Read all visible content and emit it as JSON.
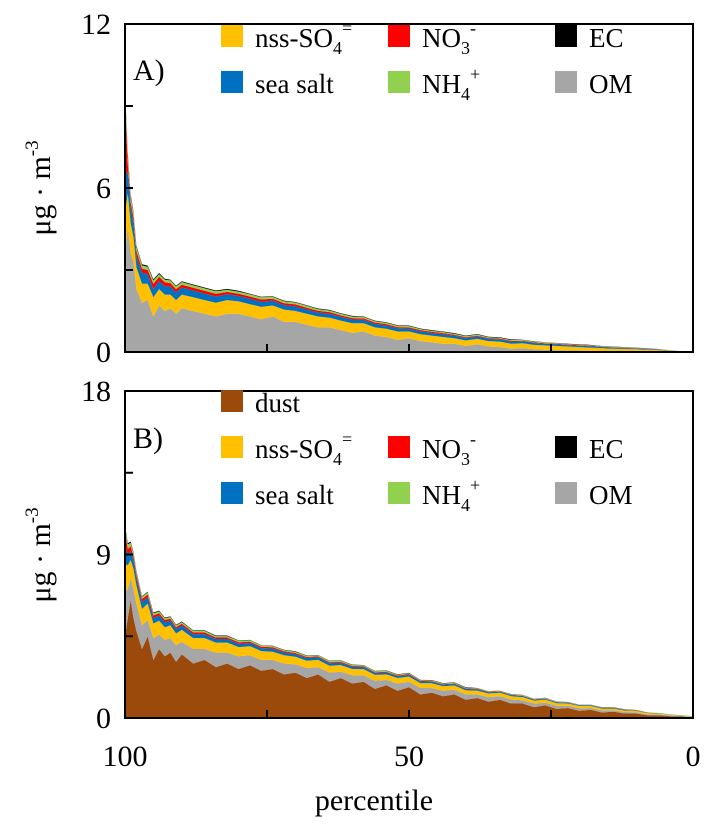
{
  "chart_data": [
    {
      "type": "area",
      "panel_label": "A)",
      "ylabel_base": "μg · m",
      "ylabel_exp": "-3",
      "ylim": [
        0,
        12
      ],
      "yticks": [
        "0",
        "6",
        "12"
      ],
      "xlim": [
        100,
        0
      ],
      "x": [
        100,
        99.5,
        99,
        98.5,
        98,
        97,
        96,
        95,
        94,
        93,
        92,
        91,
        90,
        88,
        86,
        84,
        82,
        80,
        78,
        76,
        74,
        72,
        70,
        68,
        66,
        64,
        62,
        60,
        58,
        56,
        54,
        52,
        50,
        48,
        46,
        44,
        42,
        40,
        38,
        36,
        34,
        32,
        30,
        28,
        26,
        24,
        22,
        20,
        18,
        16,
        14,
        12,
        10,
        8,
        6,
        4,
        2,
        0
      ],
      "series": [
        {
          "name": "OM",
          "color": "#a6a6a6",
          "values": [
            3.5,
            4.6,
            3.6,
            3.3,
            2.3,
            1.8,
            1.9,
            1.3,
            1.7,
            1.5,
            1.6,
            1.4,
            1.6,
            1.5,
            1.4,
            1.3,
            1.4,
            1.4,
            1.3,
            1.2,
            1.3,
            1.1,
            1.1,
            1.0,
            0.9,
            0.9,
            0.8,
            0.7,
            0.75,
            0.6,
            0.55,
            0.45,
            0.5,
            0.4,
            0.35,
            0.3,
            0.3,
            0.22,
            0.28,
            0.2,
            0.18,
            0.12,
            0.14,
            0.1,
            0.08,
            0.07,
            0.06,
            0.05,
            0.04,
            0.03,
            0.02,
            0.02,
            0.02,
            0.01,
            0.01,
            0.01,
            0.0,
            0.0
          ]
        },
        {
          "name": "nss-SO4=",
          "color": "#ffc000",
          "values": [
            1.6,
            1.2,
            1.1,
            0.9,
            0.8,
            0.7,
            0.6,
            0.7,
            0.6,
            0.6,
            0.5,
            0.5,
            0.5,
            0.5,
            0.5,
            0.5,
            0.5,
            0.45,
            0.45,
            0.45,
            0.4,
            0.45,
            0.4,
            0.4,
            0.4,
            0.35,
            0.35,
            0.35,
            0.3,
            0.3,
            0.3,
            0.3,
            0.25,
            0.25,
            0.25,
            0.25,
            0.2,
            0.2,
            0.2,
            0.2,
            0.2,
            0.18,
            0.18,
            0.16,
            0.16,
            0.15,
            0.14,
            0.13,
            0.12,
            0.11,
            0.1,
            0.09,
            0.08,
            0.07,
            0.06,
            0.04,
            0.02,
            0.0
          ]
        },
        {
          "name": "sea salt",
          "color": "#0070c0",
          "values": [
            1.3,
            0.8,
            0.6,
            0.5,
            0.4,
            0.4,
            0.35,
            0.3,
            0.3,
            0.3,
            0.3,
            0.28,
            0.26,
            0.25,
            0.24,
            0.23,
            0.22,
            0.2,
            0.2,
            0.19,
            0.18,
            0.17,
            0.17,
            0.16,
            0.15,
            0.15,
            0.14,
            0.14,
            0.13,
            0.13,
            0.12,
            0.12,
            0.11,
            0.11,
            0.1,
            0.1,
            0.1,
            0.09,
            0.09,
            0.08,
            0.08,
            0.08,
            0.07,
            0.07,
            0.06,
            0.06,
            0.05,
            0.05,
            0.05,
            0.04,
            0.04,
            0.03,
            0.03,
            0.02,
            0.02,
            0.01,
            0.01,
            0.0
          ]
        },
        {
          "name": "NO3-",
          "color": "#ff0000",
          "values": [
            2.9,
            0.3,
            0.2,
            0.2,
            0.2,
            0.15,
            0.15,
            0.2,
            0.15,
            0.15,
            0.12,
            0.12,
            0.1,
            0.1,
            0.1,
            0.1,
            0.08,
            0.08,
            0.08,
            0.08,
            0.07,
            0.07,
            0.07,
            0.06,
            0.06,
            0.06,
            0.05,
            0.05,
            0.05,
            0.05,
            0.05,
            0.04,
            0.04,
            0.04,
            0.04,
            0.04,
            0.03,
            0.03,
            0.03,
            0.03,
            0.03,
            0.03,
            0.02,
            0.02,
            0.02,
            0.02,
            0.02,
            0.02,
            0.02,
            0.01,
            0.01,
            0.01,
            0.01,
            0.01,
            0.01,
            0.0,
            0.0,
            0.0
          ]
        },
        {
          "name": "NH4+",
          "color": "#92d050",
          "values": [
            0.2,
            0.3,
            0.2,
            0.2,
            0.15,
            0.12,
            0.12,
            0.12,
            0.1,
            0.1,
            0.1,
            0.1,
            0.1,
            0.09,
            0.09,
            0.09,
            0.08,
            0.08,
            0.08,
            0.08,
            0.07,
            0.07,
            0.07,
            0.07,
            0.06,
            0.06,
            0.06,
            0.06,
            0.05,
            0.05,
            0.05,
            0.05,
            0.05,
            0.04,
            0.04,
            0.04,
            0.04,
            0.04,
            0.04,
            0.03,
            0.03,
            0.03,
            0.03,
            0.03,
            0.03,
            0.02,
            0.02,
            0.02,
            0.02,
            0.02,
            0.02,
            0.02,
            0.01,
            0.01,
            0.01,
            0.01,
            0.0,
            0.0
          ]
        },
        {
          "name": "EC",
          "color": "#000000",
          "values": [
            0.1,
            0.08,
            0.06,
            0.05,
            0.05,
            0.04,
            0.04,
            0.04,
            0.04,
            0.03,
            0.03,
            0.03,
            0.03,
            0.03,
            0.03,
            0.03,
            0.03,
            0.03,
            0.02,
            0.02,
            0.02,
            0.02,
            0.02,
            0.02,
            0.02,
            0.02,
            0.02,
            0.02,
            0.02,
            0.02,
            0.02,
            0.02,
            0.02,
            0.02,
            0.02,
            0.02,
            0.02,
            0.02,
            0.02,
            0.02,
            0.02,
            0.02,
            0.01,
            0.01,
            0.01,
            0.01,
            0.01,
            0.01,
            0.01,
            0.01,
            0.01,
            0.01,
            0.01,
            0.01,
            0.0,
            0.0,
            0.0,
            0.0
          ]
        }
      ],
      "legend": [
        {
          "label": "nss-SO",
          "sub": "4",
          "sup": "=",
          "color": "#ffc000"
        },
        {
          "label": "NO",
          "sub": "3",
          "sup": "-",
          "color": "#ff0000"
        },
        {
          "label": "EC",
          "sub": "",
          "sup": "",
          "color": "#000000"
        },
        {
          "label": "sea salt",
          "sub": "",
          "sup": "",
          "color": "#0070c0"
        },
        {
          "label": "NH",
          "sub": "4",
          "sup": "+",
          "color": "#92d050"
        },
        {
          "label": "OM",
          "sub": "",
          "sup": "",
          "color": "#a6a6a6"
        }
      ]
    },
    {
      "type": "area",
      "panel_label": "B)",
      "ylabel_base": "μg · m",
      "ylabel_exp": "-3",
      "ylim": [
        0,
        18
      ],
      "yticks": [
        "0",
        "9",
        "18"
      ],
      "xlim": [
        100,
        0
      ],
      "xticks": [
        "100",
        "50",
        "0"
      ],
      "xlabel": "percentile",
      "x": [
        100,
        99.5,
        99,
        98.5,
        98,
        97,
        96,
        95,
        94,
        93,
        92,
        91,
        90,
        88,
        86,
        84,
        82,
        80,
        78,
        76,
        74,
        72,
        70,
        68,
        66,
        64,
        62,
        60,
        58,
        56,
        54,
        52,
        50,
        48,
        46,
        44,
        42,
        40,
        38,
        36,
        34,
        32,
        30,
        28,
        26,
        24,
        22,
        20,
        18,
        16,
        14,
        12,
        10,
        8,
        6,
        4,
        2,
        0
      ],
      "series": [
        {
          "name": "dust",
          "color": "#9c4a0c",
          "values": [
            4.5,
            5.5,
            6.5,
            5.5,
            4.8,
            3.8,
            4.5,
            3.2,
            3.8,
            3.4,
            3.6,
            3.1,
            3.5,
            3.0,
            3.2,
            2.8,
            3.0,
            2.7,
            2.9,
            2.6,
            2.7,
            2.4,
            2.5,
            2.2,
            2.4,
            2.0,
            2.2,
            1.9,
            2.0,
            1.6,
            1.8,
            1.5,
            1.7,
            1.3,
            1.4,
            1.2,
            1.3,
            1.0,
            1.1,
            0.9,
            1.0,
            0.8,
            0.8,
            0.6,
            0.7,
            0.5,
            0.55,
            0.4,
            0.45,
            0.3,
            0.35,
            0.25,
            0.25,
            0.15,
            0.15,
            0.1,
            0.08,
            0.05
          ]
        },
        {
          "name": "OM",
          "color": "#a6a6a6",
          "values": [
            2.5,
            1.6,
            1.2,
            1.6,
            1.5,
            1.3,
            0.9,
            1.2,
            0.8,
            0.9,
            0.8,
            0.9,
            0.7,
            0.8,
            0.6,
            0.8,
            0.6,
            0.7,
            0.55,
            0.6,
            0.5,
            0.6,
            0.45,
            0.55,
            0.4,
            0.5,
            0.35,
            0.45,
            0.35,
            0.45,
            0.3,
            0.4,
            0.3,
            0.35,
            0.25,
            0.3,
            0.25,
            0.3,
            0.2,
            0.25,
            0.2,
            0.22,
            0.18,
            0.2,
            0.15,
            0.17,
            0.12,
            0.14,
            0.1,
            0.12,
            0.08,
            0.08,
            0.07,
            0.06,
            0.05,
            0.04,
            0.03,
            0.02
          ]
        },
        {
          "name": "nss-SO4=",
          "color": "#ffc000",
          "values": [
            1.5,
            1.3,
            1.0,
            1.1,
            1.0,
            0.9,
            0.9,
            0.8,
            0.75,
            0.7,
            0.7,
            0.65,
            0.65,
            0.6,
            0.6,
            0.55,
            0.55,
            0.5,
            0.5,
            0.48,
            0.45,
            0.45,
            0.42,
            0.4,
            0.4,
            0.38,
            0.36,
            0.35,
            0.34,
            0.32,
            0.3,
            0.3,
            0.28,
            0.27,
            0.26,
            0.25,
            0.24,
            0.22,
            0.21,
            0.2,
            0.19,
            0.18,
            0.17,
            0.16,
            0.15,
            0.14,
            0.13,
            0.12,
            0.11,
            0.1,
            0.09,
            0.08,
            0.07,
            0.06,
            0.05,
            0.04,
            0.03,
            0.02
          ]
        },
        {
          "name": "sea salt",
          "color": "#0070c0",
          "values": [
            1.0,
            0.6,
            0.5,
            0.5,
            0.4,
            0.4,
            0.35,
            0.3,
            0.3,
            0.28,
            0.26,
            0.25,
            0.24,
            0.22,
            0.22,
            0.2,
            0.2,
            0.19,
            0.18,
            0.17,
            0.17,
            0.16,
            0.15,
            0.15,
            0.14,
            0.14,
            0.13,
            0.12,
            0.12,
            0.11,
            0.11,
            0.1,
            0.1,
            0.09,
            0.09,
            0.08,
            0.08,
            0.08,
            0.07,
            0.07,
            0.06,
            0.06,
            0.06,
            0.05,
            0.05,
            0.05,
            0.04,
            0.04,
            0.04,
            0.03,
            0.03,
            0.03,
            0.02,
            0.02,
            0.02,
            0.01,
            0.01,
            0.01
          ]
        },
        {
          "name": "NO3-",
          "color": "#ff0000",
          "values": [
            0.8,
            0.3,
            0.25,
            0.2,
            0.2,
            0.15,
            0.15,
            0.15,
            0.12,
            0.12,
            0.1,
            0.1,
            0.1,
            0.09,
            0.09,
            0.08,
            0.08,
            0.08,
            0.07,
            0.07,
            0.07,
            0.06,
            0.06,
            0.06,
            0.05,
            0.05,
            0.05,
            0.05,
            0.04,
            0.04,
            0.04,
            0.04,
            0.04,
            0.03,
            0.03,
            0.03,
            0.03,
            0.03,
            0.03,
            0.02,
            0.02,
            0.02,
            0.02,
            0.02,
            0.02,
            0.02,
            0.01,
            0.01,
            0.01,
            0.01,
            0.01,
            0.01,
            0.01,
            0.01,
            0.0,
            0.0,
            0.0,
            0.0
          ]
        },
        {
          "name": "NH4+",
          "color": "#92d050",
          "values": [
            0.2,
            0.25,
            0.2,
            0.2,
            0.15,
            0.12,
            0.12,
            0.12,
            0.1,
            0.1,
            0.1,
            0.1,
            0.09,
            0.09,
            0.09,
            0.08,
            0.08,
            0.08,
            0.08,
            0.07,
            0.07,
            0.07,
            0.07,
            0.06,
            0.06,
            0.06,
            0.06,
            0.05,
            0.05,
            0.05,
            0.05,
            0.05,
            0.04,
            0.04,
            0.04,
            0.04,
            0.04,
            0.04,
            0.03,
            0.03,
            0.03,
            0.03,
            0.03,
            0.03,
            0.03,
            0.02,
            0.02,
            0.02,
            0.02,
            0.02,
            0.02,
            0.02,
            0.01,
            0.01,
            0.01,
            0.01,
            0.01,
            0.0
          ]
        },
        {
          "name": "EC",
          "color": "#000000",
          "values": [
            0.1,
            0.08,
            0.06,
            0.05,
            0.05,
            0.04,
            0.04,
            0.04,
            0.04,
            0.03,
            0.03,
            0.03,
            0.03,
            0.03,
            0.03,
            0.03,
            0.03,
            0.02,
            0.02,
            0.02,
            0.02,
            0.02,
            0.02,
            0.02,
            0.02,
            0.02,
            0.02,
            0.02,
            0.02,
            0.02,
            0.02,
            0.02,
            0.02,
            0.02,
            0.02,
            0.02,
            0.02,
            0.02,
            0.01,
            0.01,
            0.01,
            0.01,
            0.01,
            0.01,
            0.01,
            0.01,
            0.01,
            0.01,
            0.01,
            0.01,
            0.01,
            0.01,
            0.01,
            0.0,
            0.0,
            0.0,
            0.0,
            0.0
          ]
        }
      ],
      "legend": [
        {
          "label": "dust",
          "sub": "",
          "sup": "",
          "color": "#9c4a0c"
        },
        {
          "label": "nss-SO",
          "sub": "4",
          "sup": "=",
          "color": "#ffc000"
        },
        {
          "label": "NO",
          "sub": "3",
          "sup": "-",
          "color": "#ff0000"
        },
        {
          "label": "EC",
          "sub": "",
          "sup": "",
          "color": "#000000"
        },
        {
          "label": "sea salt",
          "sub": "",
          "sup": "",
          "color": "#0070c0"
        },
        {
          "label": "NH",
          "sub": "4",
          "sup": "+",
          "color": "#92d050"
        },
        {
          "label": "OM",
          "sub": "",
          "sup": "",
          "color": "#a6a6a6"
        }
      ]
    }
  ]
}
